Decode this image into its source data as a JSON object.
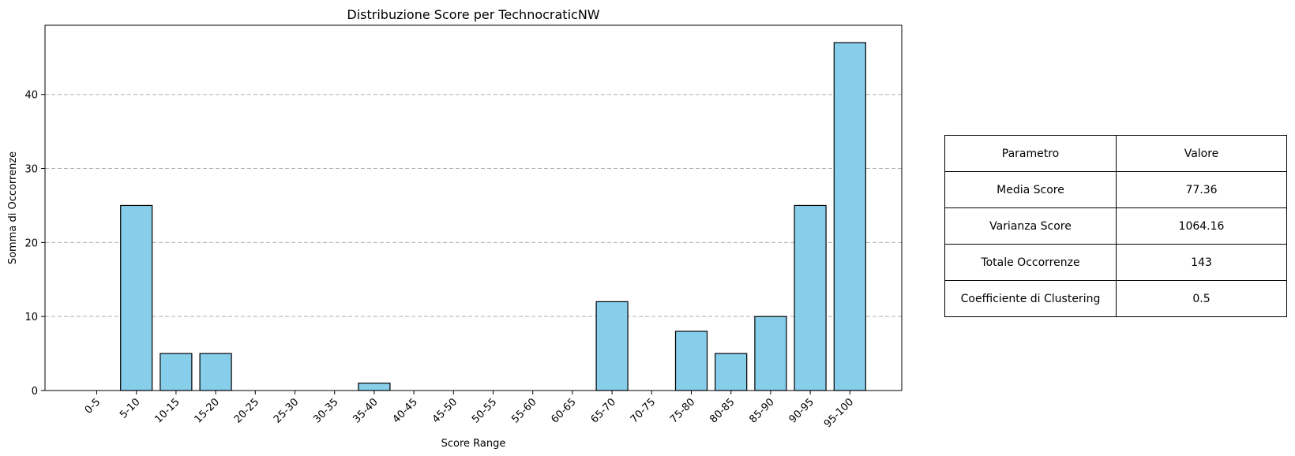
{
  "chart_data": {
    "type": "bar",
    "title": "Distribuzione Score per TechnocraticNW",
    "xlabel": "Score Range",
    "ylabel": "Somma di Occorrenze",
    "categories": [
      "0-5",
      "5-10",
      "10-15",
      "15-20",
      "20-25",
      "25-30",
      "30-35",
      "35-40",
      "40-45",
      "45-50",
      "50-55",
      "55-60",
      "60-65",
      "65-70",
      "70-75",
      "75-80",
      "80-85",
      "85-90",
      "90-95",
      "95-100"
    ],
    "values": [
      0,
      25,
      5,
      5,
      0,
      0,
      0,
      1,
      0,
      0,
      0,
      0,
      0,
      12,
      0,
      8,
      5,
      10,
      25,
      47
    ],
    "ylim": [
      0,
      49.35
    ],
    "yticks": [
      0,
      10,
      20,
      30,
      40
    ],
    "grid": "y-dashed",
    "bar_color": "#87ceeb",
    "edge_color": "#000000"
  },
  "table": {
    "header": [
      "Parametro",
      "Valore"
    ],
    "rows": [
      [
        "Media Score",
        "77.36"
      ],
      [
        "Varianza Score",
        "1064.16"
      ],
      [
        "Totale Occorrenze",
        "143"
      ],
      [
        "Coefficiente di Clustering",
        "0.5"
      ]
    ]
  }
}
